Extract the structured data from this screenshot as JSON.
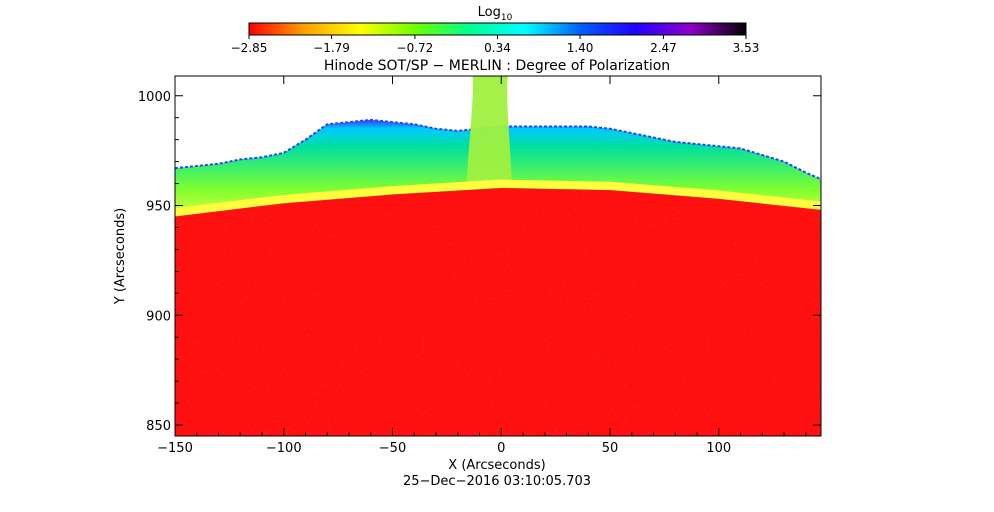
{
  "chart_data": {
    "type": "heatmap",
    "title": "Hinode SOT/SP − MERLIN : Degree of Polarization",
    "xlabel": "X (Arcseconds)",
    "ylabel": "Y (Arcseconds)",
    "xlim": [
      -150,
      147
    ],
    "ylim": [
      845,
      1009
    ],
    "xticks": [
      -150,
      -100,
      -50,
      0,
      50,
      100
    ],
    "xtick_labels": [
      "−150",
      "−100",
      "−50",
      "0",
      "50",
      "100"
    ],
    "yticks": [
      850,
      900,
      950,
      1000
    ],
    "ytick_labels": [
      "850",
      "900",
      "950",
      "1000"
    ],
    "timestamp": "25−Dec−2016 03:10:05.703",
    "colorbar": {
      "label": "Log",
      "label_subscript": "10",
      "range": [
        -2.85,
        3.53
      ],
      "ticks": [
        -2.85,
        -1.79,
        -0.72,
        0.34,
        1.4,
        2.47,
        3.53
      ],
      "tick_labels": [
        "−2.85",
        "−1.79",
        "−0.72",
        "0.34",
        "1.40",
        "2.47",
        "3.53"
      ],
      "colormap": [
        "#ff0000",
        "#ffa000",
        "#ffff00",
        "#70ff00",
        "#00ff90",
        "#00ffff",
        "#0060ff",
        "#2000ff",
        "#9000c8",
        "#000000"
      ]
    },
    "colors": {
      "disk": "#ff1010",
      "limb": "#ffff40",
      "offlimb": "#80ff30",
      "corona_outer": "#00c8ff",
      "noise": "#3040ff",
      "sky": "#ffffff"
    },
    "limb_y": [
      [
        -150,
        945
      ],
      [
        -100,
        951
      ],
      [
        -50,
        955
      ],
      [
        0,
        958
      ],
      [
        50,
        957
      ],
      [
        100,
        953
      ],
      [
        147,
        948
      ]
    ],
    "edge_y": [
      [
        -150,
        967
      ],
      [
        -140,
        968
      ],
      [
        -130,
        969
      ],
      [
        -120,
        971
      ],
      [
        -110,
        972
      ],
      [
        -100,
        974
      ],
      [
        -90,
        980
      ],
      [
        -80,
        987
      ],
      [
        -70,
        988
      ],
      [
        -60,
        989
      ],
      [
        -50,
        988
      ],
      [
        -40,
        987
      ],
      [
        -30,
        985
      ],
      [
        -20,
        984
      ],
      [
        -10,
        985
      ],
      [
        0,
        986
      ],
      [
        10,
        986
      ],
      [
        20,
        986
      ],
      [
        30,
        986
      ],
      [
        40,
        986
      ],
      [
        50,
        985
      ],
      [
        60,
        983
      ],
      [
        70,
        981
      ],
      [
        80,
        979
      ],
      [
        90,
        978
      ],
      [
        100,
        977
      ],
      [
        110,
        976
      ],
      [
        120,
        973
      ],
      [
        130,
        970
      ],
      [
        140,
        965
      ],
      [
        147,
        962
      ]
    ],
    "jet": {
      "x_range": [
        -15,
        4
      ],
      "y_top": 1009
    }
  }
}
